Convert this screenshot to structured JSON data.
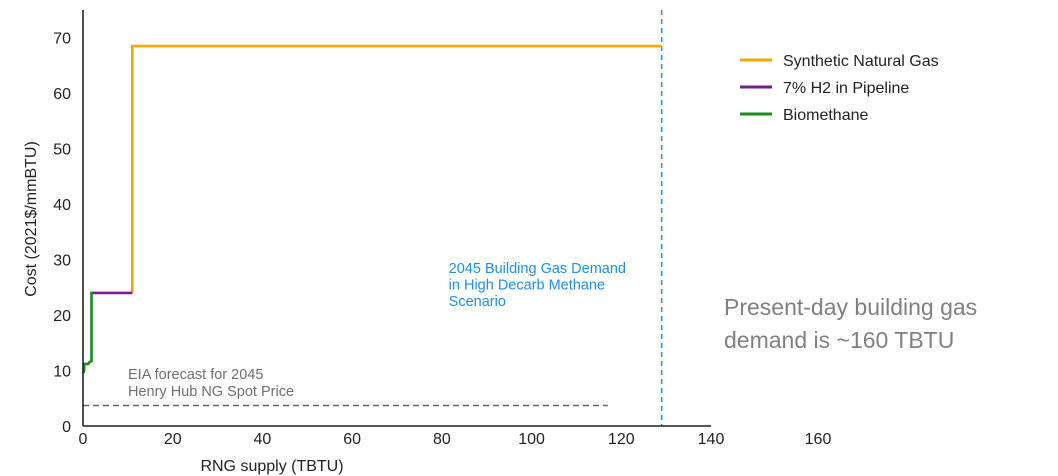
{
  "chart_data": {
    "type": "line",
    "title": "",
    "xlabel": "RNG supply (TBTU)",
    "ylabel": "Cost (2021$/mmBTU)",
    "xlim": [
      0,
      140
    ],
    "ylim": [
      0,
      75
    ],
    "xticks": [
      0,
      20,
      40,
      60,
      80,
      100,
      120,
      140
    ],
    "yticks": [
      0,
      10,
      20,
      30,
      40,
      50,
      60,
      70
    ],
    "grid": false,
    "legend_position": "right",
    "series": [
      {
        "name": "Synthetic Natural Gas",
        "color": "#f5a800",
        "step": true,
        "points": [
          [
            11,
            24
          ],
          [
            11,
            68.5
          ],
          [
            129,
            68.5
          ]
        ]
      },
      {
        "name": "7% H2 in Pipeline",
        "color": "#7b1c8c",
        "step": true,
        "points": [
          [
            1.9,
            24
          ],
          [
            11,
            24
          ]
        ]
      },
      {
        "name": "Biomethane",
        "color": "#1f8a1f",
        "step": true,
        "points": [
          [
            0,
            9.5
          ],
          [
            0.3,
            10
          ],
          [
            0.3,
            11.2
          ],
          [
            1.2,
            11.2
          ],
          [
            1.4,
            11.5
          ],
          [
            1.9,
            11.7
          ],
          [
            1.9,
            24
          ],
          [
            2.2,
            24
          ]
        ]
      }
    ],
    "reference_lines": [
      {
        "orientation": "vertical",
        "x": 129,
        "color": "#1f8fe6",
        "style": "dashed",
        "label_lines": [
          "2045 Building Gas Demand",
          "in High Decarb Methane",
          "Scenario"
        ]
      },
      {
        "orientation": "horizontal",
        "y": 3.7,
        "x_range": [
          0,
          117
        ],
        "color": "#666666",
        "style": "dashed",
        "label_lines": [
          "EIA forecast for 2045",
          "Henry Hub NG Spot Price"
        ]
      }
    ],
    "extra_tick": {
      "x": 160,
      "label": "160"
    }
  },
  "note": {
    "lines": [
      "Present-day building gas",
      "demand is ~160 TBTU"
    ]
  }
}
